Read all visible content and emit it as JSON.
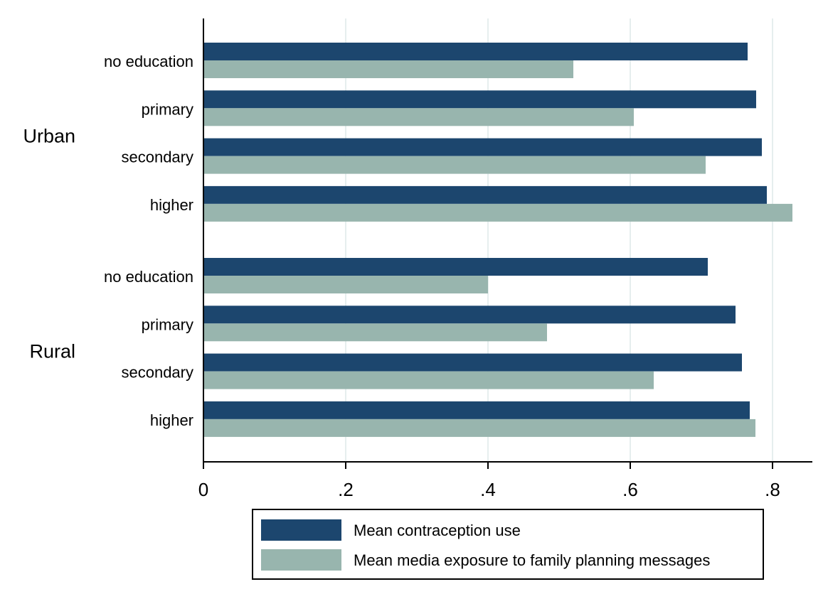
{
  "chart_data": {
    "type": "bar",
    "orientation": "horizontal",
    "title": "",
    "xlabel": "",
    "ylabel": "",
    "xlim": [
      0,
      0.85
    ],
    "x_ticks": [
      {
        "value": 0,
        "label": "0"
      },
      {
        "value": 0.2,
        "label": ".2"
      },
      {
        "value": 0.4,
        "label": ".4"
      },
      {
        "value": 0.6,
        "label": ".6"
      },
      {
        "value": 0.8,
        "label": ".8"
      }
    ],
    "grid": true,
    "legend_position": "bottom",
    "series": [
      {
        "name": "Mean contraception use",
        "color": "#1c466e"
      },
      {
        "name": "Mean media exposure to family planning messages",
        "color": "#98b5ae"
      }
    ],
    "groups": [
      {
        "name": "Urban",
        "categories": [
          "no education",
          "primary",
          "secondary",
          "higher"
        ],
        "values": [
          [
            0.765,
            0.52
          ],
          [
            0.777,
            0.605
          ],
          [
            0.785,
            0.706
          ],
          [
            0.792,
            0.828
          ]
        ]
      },
      {
        "name": "Rural",
        "categories": [
          "no education",
          "primary",
          "secondary",
          "higher"
        ],
        "values": [
          [
            0.709,
            0.4
          ],
          [
            0.748,
            0.483
          ],
          [
            0.757,
            0.633
          ],
          [
            0.768,
            0.776
          ]
        ]
      }
    ]
  }
}
